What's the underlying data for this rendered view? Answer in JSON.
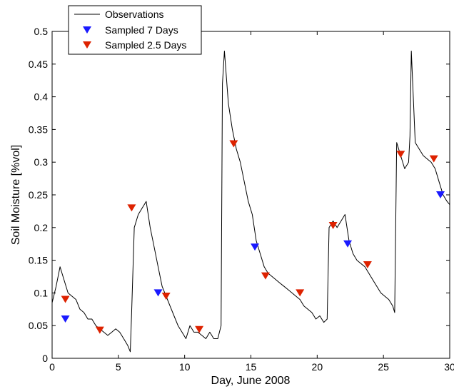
{
  "chart_data": {
    "type": "line",
    "xlabel": "Day, June 2008",
    "ylabel": "Soil Moisture [%vol]",
    "xlim": [
      0,
      30
    ],
    "ylim": [
      0,
      0.5
    ],
    "x_ticks": [
      0,
      5,
      10,
      15,
      20,
      25,
      30
    ],
    "y_ticks": [
      0,
      0.05,
      0.1,
      0.15,
      0.2,
      0.25,
      0.3,
      0.35,
      0.4,
      0.45,
      0.5
    ],
    "x_tick_labels": [
      "0",
      "5",
      "10",
      "15",
      "20",
      "25",
      "30"
    ],
    "y_tick_labels": [
      "0",
      "0.05",
      "0.1",
      "0.15",
      "0.2",
      "0.25",
      "0.3",
      "0.35",
      "0.4",
      "0.45",
      "0.5"
    ],
    "grid": false,
    "legend_position": "top-left",
    "series": [
      {
        "name": "Observations",
        "kind": "line",
        "color": "#000000",
        "x": [
          0,
          0.3,
          0.6,
          0.9,
          1.2,
          1.5,
          1.8,
          2.1,
          2.4,
          2.7,
          3.0,
          3.3,
          3.6,
          3.9,
          4.2,
          4.5,
          4.8,
          5.1,
          5.4,
          5.7,
          5.9,
          6.0,
          6.2,
          6.5,
          6.8,
          7.1,
          7.4,
          7.7,
          8.0,
          8.3,
          8.6,
          8.9,
          9.2,
          9.5,
          9.8,
          10.1,
          10.4,
          10.7,
          11.0,
          11.3,
          11.6,
          11.9,
          12.2,
          12.5,
          12.75,
          12.85,
          13.0,
          13.3,
          13.6,
          13.9,
          14.2,
          14.5,
          14.8,
          15.1,
          15.4,
          15.7,
          16.0,
          16.3,
          16.6,
          16.9,
          17.2,
          17.5,
          17.8,
          18.1,
          18.4,
          18.7,
          19.0,
          19.3,
          19.6,
          19.9,
          20.2,
          20.5,
          20.75,
          20.9,
          21.2,
          21.5,
          21.8,
          22.1,
          22.4,
          22.7,
          23.0,
          23.3,
          23.6,
          23.9,
          24.2,
          24.5,
          24.8,
          25.1,
          25.4,
          25.7,
          25.85,
          26.0,
          26.3,
          26.6,
          26.9,
          27.0,
          27.1,
          27.4,
          27.7,
          28.0,
          28.3,
          28.6,
          28.9,
          29.2,
          29.5,
          29.8,
          30.0
        ],
        "y": [
          0.085,
          0.11,
          0.14,
          0.12,
          0.1,
          0.095,
          0.09,
          0.075,
          0.07,
          0.06,
          0.06,
          0.05,
          0.045,
          0.04,
          0.035,
          0.04,
          0.045,
          0.04,
          0.03,
          0.02,
          0.01,
          0.07,
          0.2,
          0.22,
          0.23,
          0.24,
          0.2,
          0.17,
          0.14,
          0.11,
          0.095,
          0.08,
          0.065,
          0.05,
          0.04,
          0.03,
          0.05,
          0.04,
          0.04,
          0.035,
          0.03,
          0.04,
          0.03,
          0.03,
          0.05,
          0.42,
          0.47,
          0.39,
          0.35,
          0.32,
          0.3,
          0.27,
          0.24,
          0.22,
          0.18,
          0.16,
          0.14,
          0.13,
          0.125,
          0.12,
          0.115,
          0.11,
          0.105,
          0.1,
          0.095,
          0.09,
          0.08,
          0.075,
          0.07,
          0.06,
          0.065,
          0.055,
          0.06,
          0.2,
          0.21,
          0.2,
          0.21,
          0.22,
          0.18,
          0.16,
          0.15,
          0.145,
          0.14,
          0.13,
          0.12,
          0.11,
          0.1,
          0.095,
          0.09,
          0.08,
          0.07,
          0.33,
          0.31,
          0.29,
          0.3,
          0.34,
          0.47,
          0.33,
          0.32,
          0.31,
          0.305,
          0.3,
          0.29,
          0.27,
          0.25,
          0.24,
          0.235
        ]
      },
      {
        "name": "Sampled 7 Days",
        "kind": "marker",
        "color": "#1a1aff",
        "x": [
          1.0,
          8.0,
          15.3,
          22.3,
          29.3
        ],
        "y": [
          0.06,
          0.1,
          0.17,
          0.175,
          0.25
        ]
      },
      {
        "name": "Sampled 2.5 Days",
        "kind": "marker",
        "color": "#dd2200",
        "x": [
          1.0,
          3.6,
          6.0,
          8.6,
          11.1,
          13.7,
          16.1,
          18.7,
          21.2,
          23.8,
          26.3,
          28.8
        ],
        "y": [
          0.09,
          0.043,
          0.23,
          0.095,
          0.044,
          0.328,
          0.126,
          0.1,
          0.203,
          0.143,
          0.312,
          0.305
        ]
      }
    ]
  }
}
